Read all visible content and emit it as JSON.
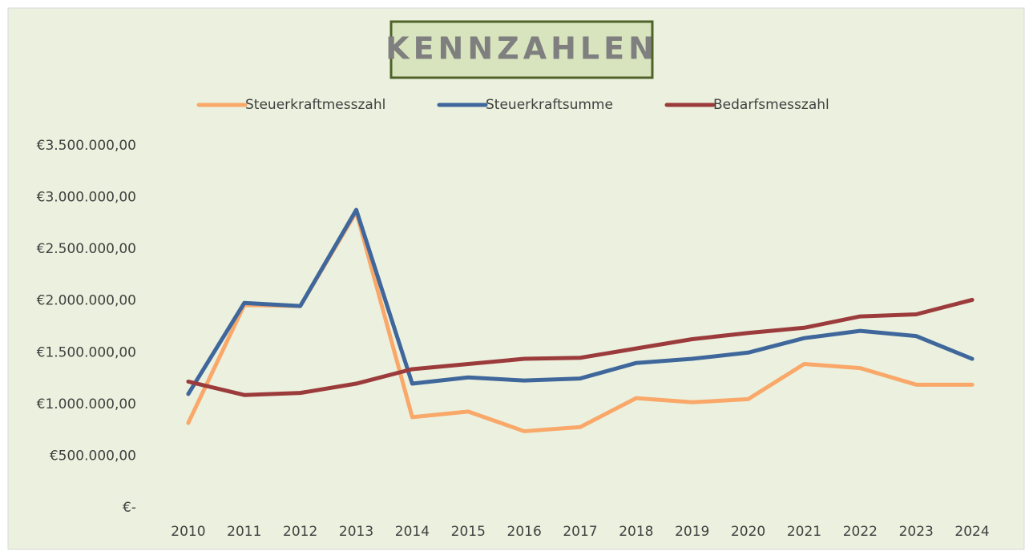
{
  "chart_data": {
    "type": "line",
    "title": "KENNZAHLEN",
    "categories": [
      "2010",
      "2011",
      "2012",
      "2013",
      "2014",
      "2015",
      "2016",
      "2017",
      "2018",
      "2019",
      "2020",
      "2021",
      "2022",
      "2023",
      "2024"
    ],
    "series": [
      {
        "name": "Steuerkraftmesszahl",
        "color": "#f9a86a",
        "values": [
          820000,
          1960000,
          1950000,
          2860000,
          876000,
          930000,
          740000,
          780000,
          1060000,
          1020000,
          1050000,
          1390000,
          1350000,
          1190000,
          1190000
        ]
      },
      {
        "name": "Steuerkraftsumme",
        "color": "#3f679c",
        "values": [
          1100000,
          1980000,
          1950000,
          2880000,
          1200000,
          1260000,
          1230000,
          1250000,
          1400000,
          1440000,
          1500000,
          1640000,
          1710000,
          1660000,
          1440000
        ]
      },
      {
        "name": "Bedarfsmesszahl",
        "color": "#9c3b3b",
        "values": [
          1220000,
          1090000,
          1110000,
          1200000,
          1340000,
          1390000,
          1440000,
          1450000,
          1540000,
          1630000,
          1690000,
          1740000,
          1850000,
          1870000,
          2010000
        ]
      }
    ],
    "ylim": [
      0,
      3500000
    ],
    "yticks": [
      {
        "value": 0,
        "label": "€-"
      },
      {
        "value": 500000,
        "label": "€500.000,00"
      },
      {
        "value": 1000000,
        "label": "€1.000.000,00"
      },
      {
        "value": 1500000,
        "label": "€1.500.000,00"
      },
      {
        "value": 2000000,
        "label": "€2.000.000,00"
      },
      {
        "value": 2500000,
        "label": "€2.500.000,00"
      },
      {
        "value": 3000000,
        "label": "€3.000.000,00"
      },
      {
        "value": 3500000,
        "label": "€3.500.000,00"
      }
    ],
    "grid": false,
    "legend": "top"
  }
}
